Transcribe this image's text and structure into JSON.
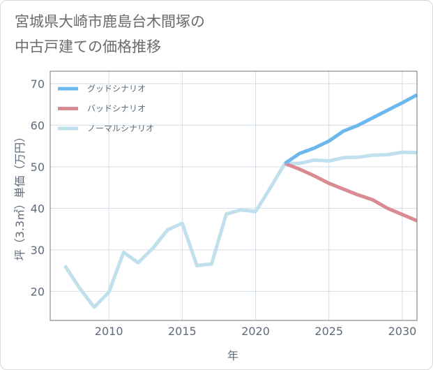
{
  "title": {
    "line1": "宮城県大崎市鹿島台木間塚の",
    "line2": "中古戸建ての価格推移"
  },
  "colors": {
    "good": "#6cb8ec",
    "bad": "#d98a93",
    "normal": "#bfe0ec",
    "grid": "#d3dde6",
    "axis": "#6b7480"
  },
  "chart_data": {
    "type": "line",
    "title": "宮城県大崎市鹿島台木間塚の中古戸建ての価格推移",
    "xlabel": "年",
    "ylabel": "坪（3.3㎡）単価（万円）",
    "xlim": [
      2006,
      2031
    ],
    "ylim": [
      13,
      73
    ],
    "xticks": [
      2010,
      2015,
      2020,
      2025,
      2030
    ],
    "yticks": [
      20,
      30,
      40,
      50,
      60,
      70
    ],
    "legend_position": "top-left",
    "series": [
      {
        "name": "グッドシナリオ",
        "key": "good",
        "x": [
          2022,
          2023,
          2024,
          2025,
          2026,
          2027,
          2028,
          2029,
          2030,
          2031
        ],
        "y": [
          50.8,
          53.2,
          54.5,
          56.2,
          58.6,
          60.0,
          61.8,
          63.6,
          65.4,
          67.3
        ]
      },
      {
        "name": "バッドシナリオ",
        "key": "bad",
        "x": [
          2022,
          2023,
          2024,
          2025,
          2026,
          2027,
          2028,
          2029,
          2030,
          2031
        ],
        "y": [
          50.8,
          49.4,
          47.8,
          46.0,
          44.6,
          43.2,
          42.0,
          40.0,
          38.5,
          37.0
        ]
      },
      {
        "name": "ノーマルシナリオ",
        "key": "normal",
        "x": [
          2007,
          2008,
          2009,
          2010,
          2011,
          2012,
          2013,
          2014,
          2015,
          2016,
          2017,
          2018,
          2019,
          2020,
          2021,
          2022,
          2023,
          2024,
          2025,
          2026,
          2027,
          2028,
          2029,
          2030,
          2031
        ],
        "y": [
          26.2,
          20.8,
          16.2,
          19.8,
          29.4,
          26.9,
          30.4,
          34.8,
          36.4,
          26.2,
          26.6,
          38.6,
          39.6,
          39.2,
          44.9,
          50.8,
          50.8,
          51.6,
          51.4,
          52.2,
          52.3,
          52.8,
          52.9,
          53.5,
          53.4
        ]
      }
    ]
  }
}
